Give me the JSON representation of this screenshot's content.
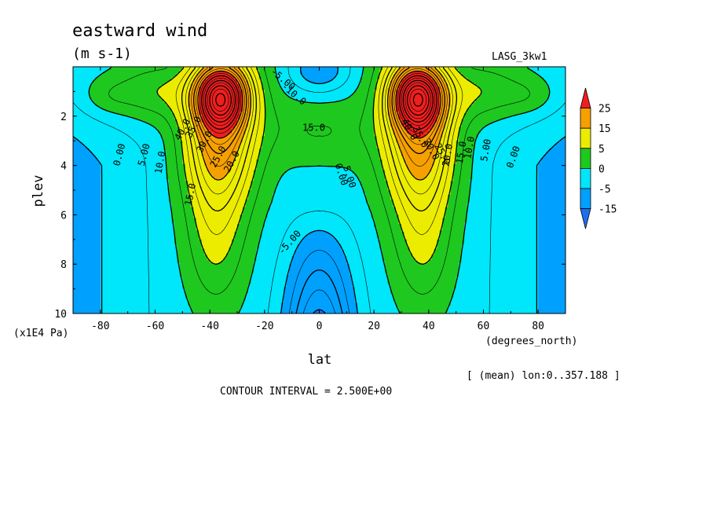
{
  "figure": {
    "title": "eastward wind",
    "units": "(m s-1)",
    "model": "LASG_3kw1",
    "xunit_note": "(degrees_north)",
    "yunit_note": "(x1E4 Pa)",
    "mean_note": "[ (mean) lon:0..357.188 ]",
    "contour_interval": "CONTOUR INTERVAL = 2.500E+00"
  },
  "chart_data": {
    "type": "heatmap",
    "title": "eastward wind",
    "xlabel": "lat",
    "ylabel": "plev",
    "xlim": [
      -90,
      90
    ],
    "ylim": [
      10,
      0
    ],
    "x_ticks": [
      -80,
      -60,
      -40,
      -20,
      0,
      20,
      40,
      60,
      80
    ],
    "x_tick_labels": [
      "-80",
      "-60",
      "-40",
      "-20",
      "0",
      "20",
      "40",
      "60",
      "80"
    ],
    "y_ticks": [
      2,
      4,
      6,
      8,
      10
    ],
    "y_tick_labels": [
      "2",
      "4",
      "6",
      "8",
      "10"
    ],
    "contour_interval": 2.5,
    "colorbar": {
      "labels": [
        "25",
        "15",
        "5",
        "0",
        "-5",
        "-15"
      ],
      "bands": [
        {
          "min": 25,
          "max": null,
          "color": "#f01e1e"
        },
        {
          "min": 15,
          "max": 25,
          "color": "#f6a000"
        },
        {
          "min": 5,
          "max": 15,
          "color": "#ecec00"
        },
        {
          "min": 0,
          "max": 5,
          "color": "#1ec81e"
        },
        {
          "min": -5,
          "max": 0,
          "color": "#00e6fa"
        },
        {
          "min": -15,
          "max": -5,
          "color": "#00a0ff"
        },
        {
          "min": null,
          "max": -15,
          "color": "#1e6ef0"
        }
      ]
    },
    "jets": [
      {
        "lat": -37,
        "plev": 1.3,
        "max_value": 40
      },
      {
        "lat": 37,
        "plev": 1.3,
        "max_value": 40
      }
    ],
    "contour_labels": [
      "40.0",
      "35.0",
      "30.0",
      "25.0",
      "20.0",
      "15.0",
      "10.0",
      "5.00",
      "0.00",
      "15.0",
      "5.00",
      "0.00",
      "-5.00",
      "40.0",
      "35.0",
      "30.0",
      "25.0",
      "20.0",
      "15.0",
      "10.0",
      "5.00",
      "0.00",
      "-5.00",
      "-10.0"
    ]
  }
}
